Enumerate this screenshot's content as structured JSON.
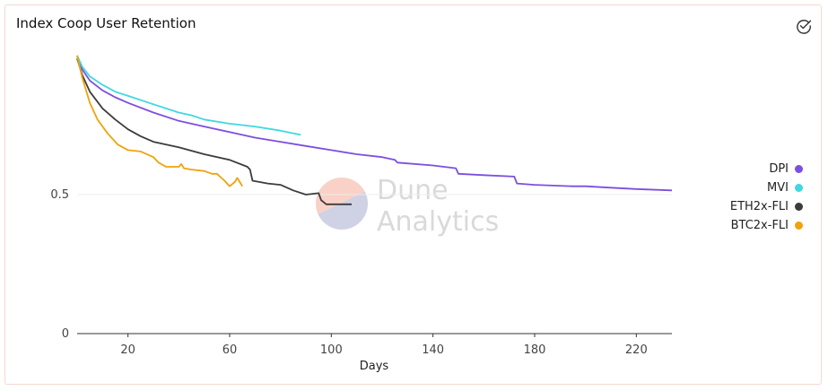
{
  "chart_data": {
    "type": "line",
    "title": "Index Coop User Retention",
    "xlabel": "Days",
    "ylabel": "",
    "xlim": [
      0,
      234
    ],
    "ylim": [
      0,
      1
    ],
    "x_ticks": [
      20,
      60,
      100,
      140,
      180,
      220
    ],
    "y_ticks": [
      0,
      0.5
    ],
    "grid": "horizontal",
    "legend_position": "right",
    "series": [
      {
        "name": "DPI",
        "color": "#7b4fe0",
        "points": [
          [
            0,
            1.0
          ],
          [
            2,
            0.95
          ],
          [
            5,
            0.91
          ],
          [
            10,
            0.875
          ],
          [
            15,
            0.85
          ],
          [
            20,
            0.83
          ],
          [
            30,
            0.795
          ],
          [
            40,
            0.765
          ],
          [
            50,
            0.745
          ],
          [
            60,
            0.725
          ],
          [
            70,
            0.705
          ],
          [
            80,
            0.69
          ],
          [
            90,
            0.675
          ],
          [
            100,
            0.66
          ],
          [
            110,
            0.645
          ],
          [
            120,
            0.635
          ],
          [
            125,
            0.625
          ],
          [
            126,
            0.615
          ],
          [
            140,
            0.605
          ],
          [
            149,
            0.595
          ],
          [
            150,
            0.575
          ],
          [
            160,
            0.57
          ],
          [
            172,
            0.565
          ],
          [
            173,
            0.54
          ],
          [
            180,
            0.535
          ],
          [
            195,
            0.53
          ],
          [
            200,
            0.53
          ],
          [
            210,
            0.525
          ],
          [
            220,
            0.52
          ],
          [
            234,
            0.515
          ]
        ]
      },
      {
        "name": "MVI",
        "color": "#3fd8e0",
        "points": [
          [
            0,
            1.0
          ],
          [
            2,
            0.96
          ],
          [
            5,
            0.925
          ],
          [
            10,
            0.895
          ],
          [
            15,
            0.87
          ],
          [
            20,
            0.855
          ],
          [
            30,
            0.825
          ],
          [
            40,
            0.795
          ],
          [
            45,
            0.785
          ],
          [
            50,
            0.77
          ],
          [
            60,
            0.755
          ],
          [
            70,
            0.745
          ],
          [
            80,
            0.73
          ],
          [
            88,
            0.715
          ]
        ]
      },
      {
        "name": "ETH2x-FLI",
        "color": "#3c3c3c",
        "points": [
          [
            0,
            0.99
          ],
          [
            2,
            0.93
          ],
          [
            5,
            0.87
          ],
          [
            10,
            0.81
          ],
          [
            15,
            0.77
          ],
          [
            20,
            0.735
          ],
          [
            25,
            0.71
          ],
          [
            30,
            0.69
          ],
          [
            40,
            0.67
          ],
          [
            50,
            0.645
          ],
          [
            60,
            0.625
          ],
          [
            67,
            0.6
          ],
          [
            68,
            0.59
          ],
          [
            69,
            0.55
          ],
          [
            75,
            0.54
          ],
          [
            80,
            0.535
          ],
          [
            85,
            0.515
          ],
          [
            90,
            0.5
          ],
          [
            95,
            0.505
          ],
          [
            96,
            0.48
          ],
          [
            98,
            0.465
          ],
          [
            100,
            0.465
          ],
          [
            105,
            0.465
          ],
          [
            108,
            0.465
          ]
        ]
      },
      {
        "name": "BTC2x-FLI",
        "color": "#f0a30a",
        "points": [
          [
            0,
            1.0
          ],
          [
            2,
            0.92
          ],
          [
            5,
            0.83
          ],
          [
            8,
            0.77
          ],
          [
            12,
            0.72
          ],
          [
            16,
            0.68
          ],
          [
            20,
            0.66
          ],
          [
            25,
            0.655
          ],
          [
            30,
            0.635
          ],
          [
            32,
            0.615
          ],
          [
            35,
            0.6
          ],
          [
            40,
            0.6
          ],
          [
            41,
            0.61
          ],
          [
            42,
            0.595
          ],
          [
            45,
            0.59
          ],
          [
            50,
            0.585
          ],
          [
            53,
            0.575
          ],
          [
            55,
            0.575
          ],
          [
            58,
            0.55
          ],
          [
            60,
            0.53
          ],
          [
            62,
            0.545
          ],
          [
            63,
            0.56
          ],
          [
            64,
            0.545
          ],
          [
            65,
            0.53
          ]
        ]
      }
    ]
  },
  "watermark": {
    "line1": "Dune",
    "line2": "Analytics"
  },
  "icons": {
    "check": "check-circle-icon"
  }
}
